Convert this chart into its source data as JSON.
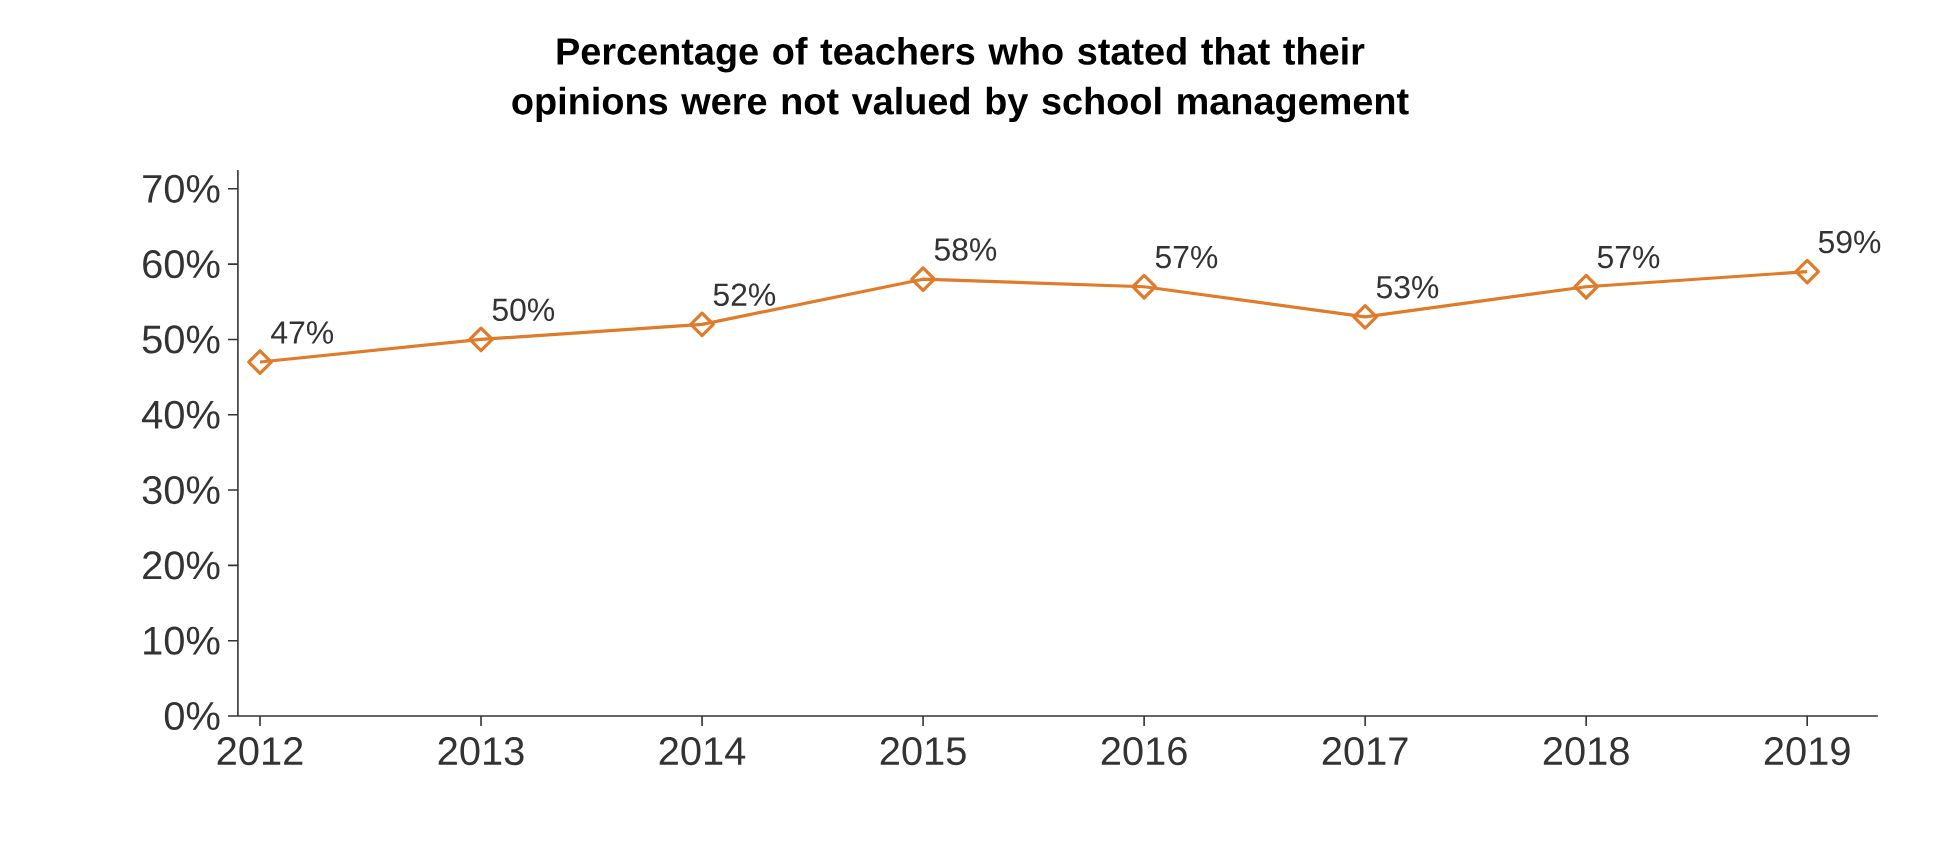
{
  "chart_data": {
    "type": "line",
    "title": "Percentage of teachers who stated that their opinions were not valued by school management",
    "categories": [
      "2012",
      "2013",
      "2014",
      "2015",
      "2016",
      "2017",
      "2018",
      "2019"
    ],
    "values": [
      47,
      50,
      52,
      58,
      57,
      53,
      57,
      59
    ],
    "value_labels": [
      "47%",
      "50%",
      "52%",
      "58%",
      "57%",
      "53%",
      "57%",
      "59%"
    ],
    "color": "#e07b2a",
    "marker": "diamond",
    "ylim": [
      0,
      72.5
    ],
    "yticks": [
      {
        "value": 0,
        "label": "0%"
      },
      {
        "value": 10,
        "label": "10%"
      },
      {
        "value": 20,
        "label": "20%"
      },
      {
        "value": 30,
        "label": "30%"
      },
      {
        "value": 40,
        "label": "40%"
      },
      {
        "value": 50,
        "label": "50%"
      },
      {
        "value": 60,
        "label": "60%"
      },
      {
        "value": 70,
        "label": "70%"
      }
    ]
  }
}
